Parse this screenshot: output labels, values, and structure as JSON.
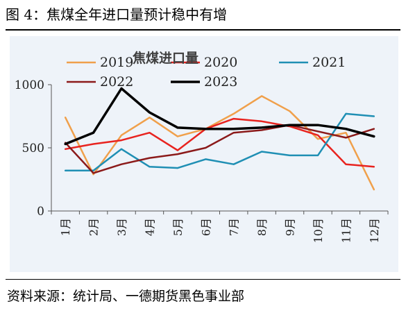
{
  "header": {
    "figure_title": "图 4：焦煤全年进口量预计稳中有增"
  },
  "footer": {
    "source": "资料来源：统计局、一德期货黑色事业部"
  },
  "colors": {
    "panel_background": "#eef3f9",
    "axis": "#555555",
    "s2019": "#f0a04b",
    "s2020": "#e8231f",
    "s2021": "#1f8fb4",
    "s2022": "#8b1a1a",
    "s2023": "#000000"
  },
  "chart_data": {
    "type": "line",
    "title": "焦煤进口量",
    "xlabel": "",
    "ylabel": "",
    "categories": [
      "1月",
      "2月",
      "3月",
      "4月",
      "5月",
      "6月",
      "7月",
      "8月",
      "9月",
      "10月",
      "11月",
      "12月"
    ],
    "ylim": [
      0,
      1000
    ],
    "yticks": [
      0,
      500,
      1000
    ],
    "grid": false,
    "legend_position": "top",
    "series": [
      {
        "name": "2019",
        "color": "#f0a04b",
        "values": [
          740,
          290,
          600,
          740,
          590,
          650,
          770,
          910,
          790,
          570,
          620,
          170
        ]
      },
      {
        "name": "2020",
        "color": "#e8231f",
        "values": [
          490,
          530,
          560,
          620,
          480,
          650,
          730,
          710,
          670,
          600,
          370,
          350
        ]
      },
      {
        "name": "2021",
        "color": "#1f8fb4",
        "values": [
          320,
          320,
          490,
          350,
          340,
          410,
          370,
          470,
          440,
          440,
          770,
          750
        ]
      },
      {
        "name": "2022",
        "color": "#8b1a1a",
        "values": [
          540,
          300,
          370,
          420,
          450,
          500,
          620,
          640,
          680,
          630,
          580,
          650
        ]
      },
      {
        "name": "2023",
        "color": "#000000",
        "values": [
          530,
          620,
          970,
          780,
          660,
          650,
          650,
          660,
          680,
          680,
          650,
          590
        ]
      }
    ]
  }
}
